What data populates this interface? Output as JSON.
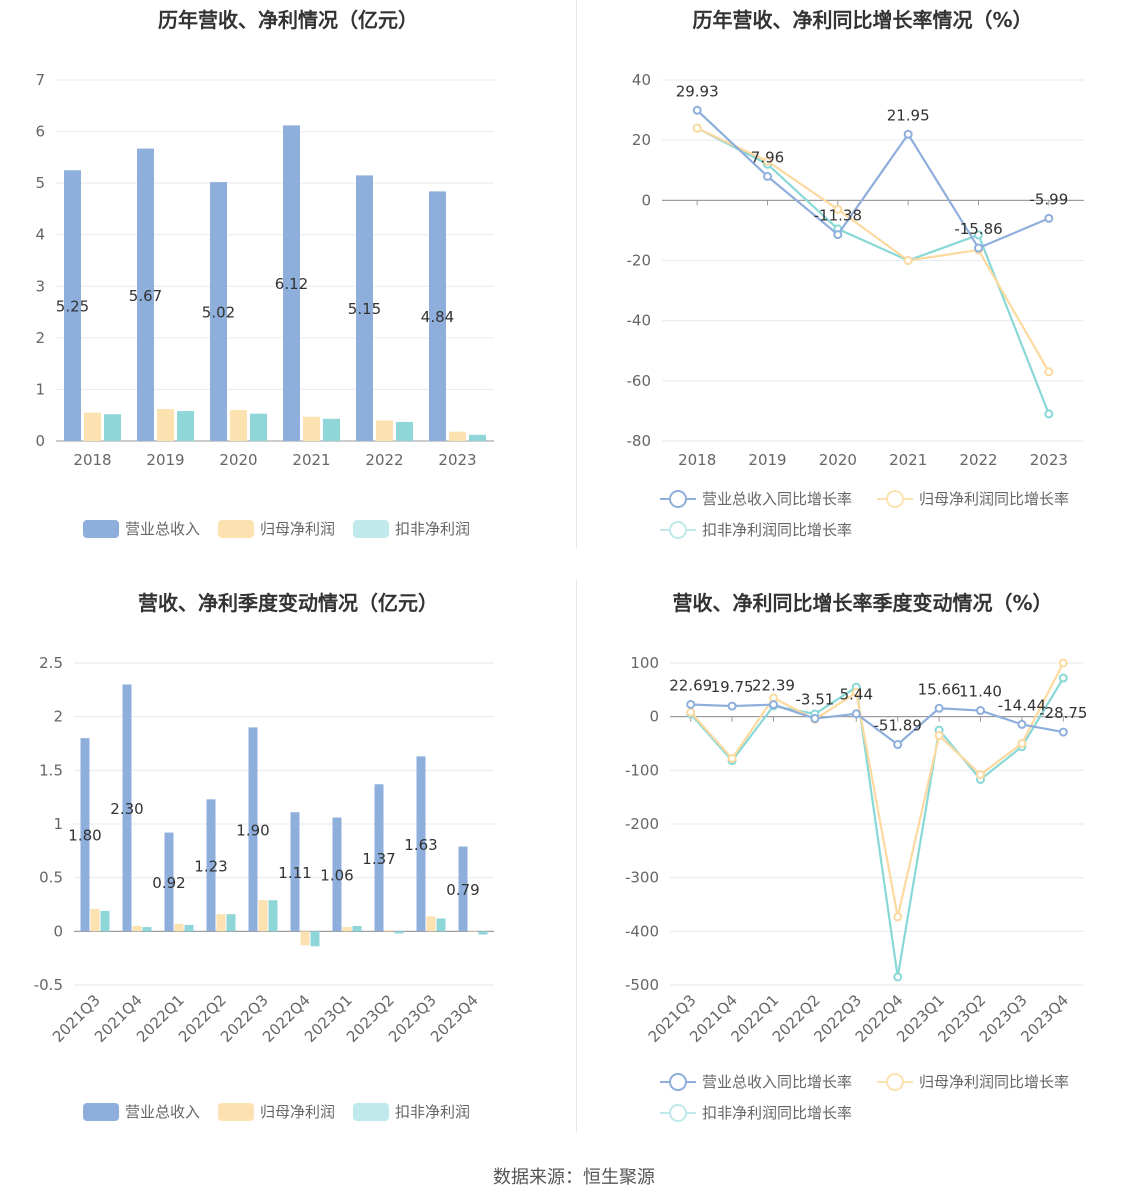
{
  "source": "数据来源：恒生聚源",
  "colors": {
    "revenue": "#8eaedc",
    "net_profit": "#fde2b1",
    "deducted_profit": "#8fd6d9",
    "revenue_line": "#8eaedc",
    "net_line": "#fdd9a0",
    "deducted_line": "#88d8d6"
  },
  "chart_data": [
    {
      "id": "annual-bars",
      "type": "bar",
      "title": "历年营收、净利情况（亿元）",
      "categories": [
        "2018",
        "2019",
        "2020",
        "2021",
        "2022",
        "2023"
      ],
      "ylim": [
        0,
        7
      ],
      "yticks": [
        "0",
        "1",
        "2",
        "3",
        "4",
        "5",
        "6",
        "7"
      ],
      "series": [
        {
          "name": "营业总收入",
          "values": [
            5.25,
            5.67,
            5.02,
            6.12,
            5.15,
            4.84
          ],
          "labels": [
            "5.25",
            "5.67",
            "5.02",
            "6.12",
            "5.15",
            "4.84"
          ]
        },
        {
          "name": "归母净利润",
          "values": [
            0.55,
            0.62,
            0.6,
            0.47,
            0.4,
            0.18
          ]
        },
        {
          "name": "扣非净利润",
          "values": [
            0.52,
            0.58,
            0.53,
            0.43,
            0.37,
            0.12
          ]
        }
      ],
      "legend": "bottom"
    },
    {
      "id": "annual-lines",
      "type": "line",
      "title": "历年营收、净利同比增长率情况（%）",
      "categories": [
        "2018",
        "2019",
        "2020",
        "2021",
        "2022",
        "2023"
      ],
      "ylim": [
        -80,
        40
      ],
      "yticks": [
        "-80",
        "-60",
        "-40",
        "-20",
        "0",
        "20",
        "40"
      ],
      "series": [
        {
          "name": "营业总收入同比增长率",
          "values": [
            29.93,
            7.96,
            -11.38,
            21.95,
            -15.86,
            -5.99
          ],
          "labels": [
            "29.93",
            "7.96",
            "-11.38",
            "21.95",
            "-15.86",
            "-5.99"
          ]
        },
        {
          "name": "归母净利润同比增长率",
          "values": [
            24,
            13,
            -3,
            -20,
            -16.5,
            -57
          ]
        },
        {
          "name": "扣非净利润同比增长率",
          "values": [
            24,
            12,
            -9.5,
            -20,
            -11.5,
            -71
          ]
        }
      ],
      "legend": "bottom"
    },
    {
      "id": "quarterly-bars",
      "type": "bar",
      "title": "营收、净利季度变动情况（亿元）",
      "categories": [
        "2021Q3",
        "2021Q4",
        "2022Q1",
        "2022Q2",
        "2022Q3",
        "2022Q4",
        "2023Q1",
        "2023Q2",
        "2023Q3",
        "2023Q4"
      ],
      "ylim": [
        -0.5,
        2.5
      ],
      "yticks": [
        "-0.5",
        "0",
        "0.5",
        "1",
        "1.5",
        "2",
        "2.5"
      ],
      "series": [
        {
          "name": "营业总收入",
          "values": [
            1.8,
            2.3,
            0.92,
            1.23,
            1.9,
            1.11,
            1.06,
            1.37,
            1.63,
            0.79
          ],
          "labels": [
            "1.80",
            "2.30",
            "0.92",
            "1.23",
            "1.90",
            "1.11",
            "1.06",
            "1.37",
            "1.63",
            "0.79"
          ]
        },
        {
          "name": "归母净利润",
          "values": [
            0.21,
            0.05,
            0.07,
            0.16,
            0.29,
            -0.13,
            0.04,
            0.01,
            0.14,
            0.0
          ]
        },
        {
          "name": "扣非净利润",
          "values": [
            0.19,
            0.04,
            0.06,
            0.16,
            0.29,
            -0.14,
            0.05,
            -0.02,
            0.12,
            -0.03
          ]
        }
      ],
      "legend": "bottom"
    },
    {
      "id": "quarterly-lines",
      "type": "line",
      "title": "营收、净利同比增长率季度变动情况（%）",
      "categories": [
        "2021Q3",
        "2021Q4",
        "2022Q1",
        "2022Q2",
        "2022Q3",
        "2022Q4",
        "2023Q1",
        "2023Q2",
        "2023Q3",
        "2023Q4"
      ],
      "ylim": [
        -500,
        100
      ],
      "yticks": [
        "-500",
        "-400",
        "-300",
        "-200",
        "-100",
        "0",
        "100"
      ],
      "series": [
        {
          "name": "营业总收入同比增长率",
          "values": [
            22.69,
            19.75,
            22.39,
            -3.51,
            5.44,
            -51.89,
            15.66,
            11.4,
            -14.44,
            -28.75
          ],
          "labels": [
            "22.69",
            "19.75",
            "22.39",
            "-3.51",
            "5.44",
            "-51.89",
            "15.66",
            "11.40",
            "-14.44",
            "-28.75"
          ]
        },
        {
          "name": "归母净利润同比增长率",
          "values": [
            8,
            -78,
            35,
            -5,
            45,
            -373,
            -35,
            -108,
            -50,
            100
          ]
        },
        {
          "name": "扣非净利润同比增长率",
          "values": [
            5,
            -82,
            20,
            5,
            55,
            -485,
            -25,
            -117,
            -56,
            72
          ]
        }
      ],
      "legend": "bottom"
    }
  ]
}
